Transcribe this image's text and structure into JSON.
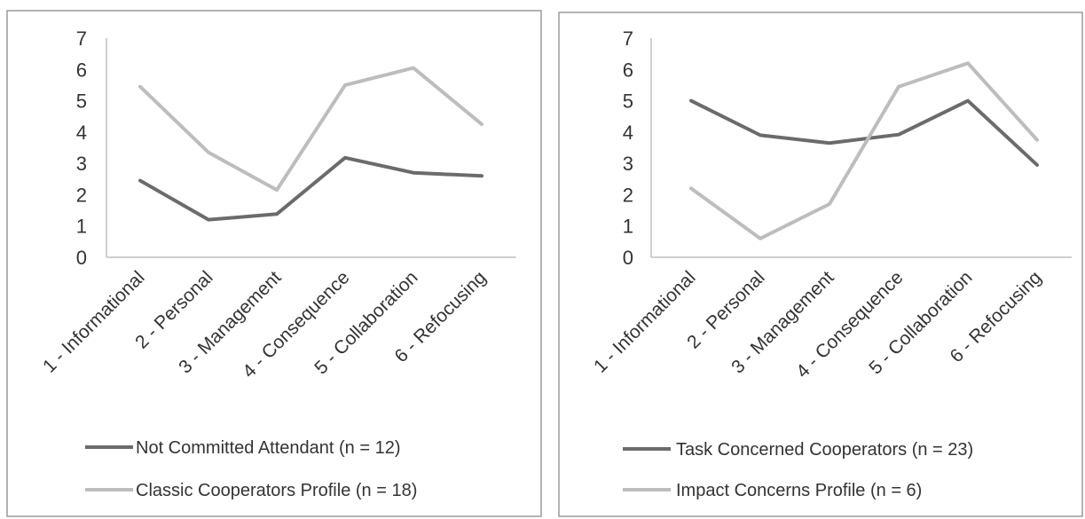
{
  "chart_data": [
    {
      "type": "line",
      "categories": [
        "1 - Informational",
        "2 - Personal",
        "3 - Management",
        "4 - Consequence",
        "5 - Collaboration",
        "6 - Refocusing"
      ],
      "ylim": [
        0,
        7
      ],
      "yticks": [
        0,
        1,
        2,
        3,
        4,
        5,
        6,
        7
      ],
      "grid": false,
      "legend_position": "bottom",
      "series": [
        {
          "name": "Not Committed Attendant (n = 12)",
          "color": "#6b6b6b",
          "values": [
            2.45,
            1.2,
            1.38,
            3.18,
            2.7,
            2.6
          ]
        },
        {
          "name": "Classic Cooperators Profile (n = 18)",
          "color": "#bdbdbd",
          "values": [
            5.45,
            3.35,
            2.15,
            5.5,
            6.05,
            4.25
          ]
        }
      ]
    },
    {
      "type": "line",
      "categories": [
        "1 - Informational",
        "2 - Personal",
        "3 - Management",
        "4 - Consequence",
        "5 - Collaboration",
        "6 - Refocusing"
      ],
      "ylim": [
        0,
        7
      ],
      "yticks": [
        0,
        1,
        2,
        3,
        4,
        5,
        6,
        7
      ],
      "grid": false,
      "legend_position": "bottom",
      "series": [
        {
          "name": "Task Concerned Cooperators (n = 23)",
          "color": "#6b6b6b",
          "values": [
            5.0,
            3.9,
            3.65,
            3.92,
            5.0,
            2.95
          ]
        },
        {
          "name": "Impact Concerns Profile (n = 6)",
          "color": "#bdbdbd",
          "values": [
            2.2,
            0.6,
            1.7,
            5.45,
            6.2,
            3.75
          ]
        }
      ]
    }
  ]
}
